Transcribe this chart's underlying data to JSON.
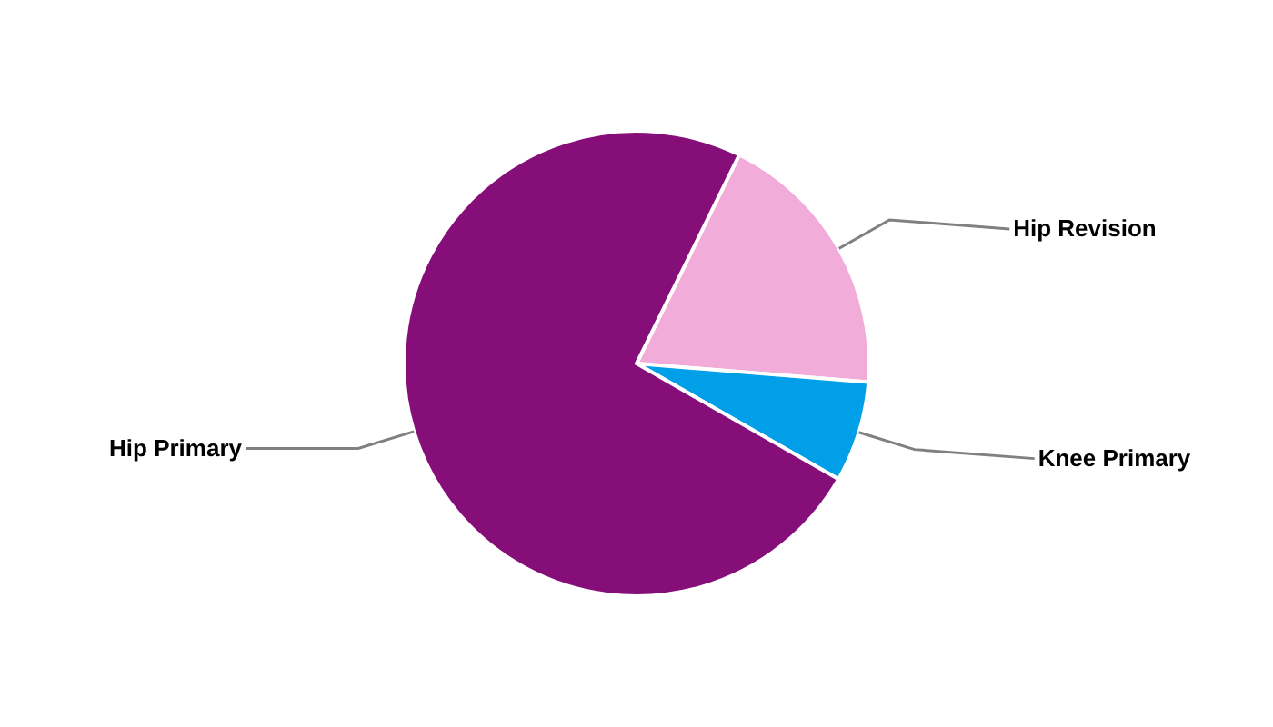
{
  "chart_data": {
    "type": "pie",
    "categories": [
      "Hip Revision",
      "Knee Primary",
      "Hip Primary"
    ],
    "values": [
      19,
      7,
      74
    ],
    "colors": [
      "#f2acd9",
      "#009fe8",
      "#860e78"
    ]
  }
}
